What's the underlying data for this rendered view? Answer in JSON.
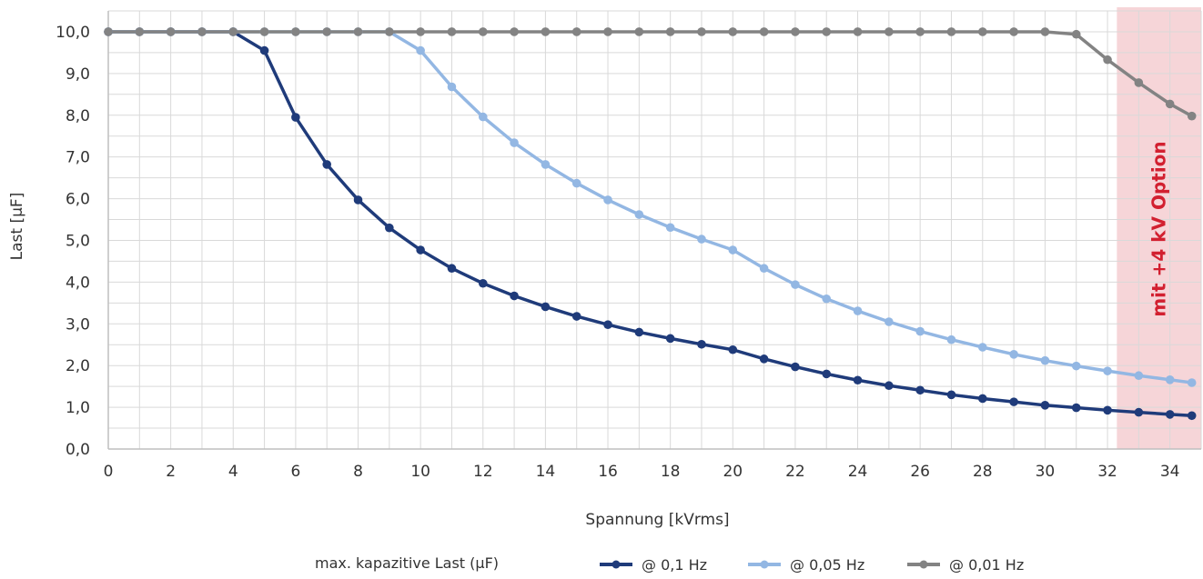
{
  "chart_data": {
    "type": "line",
    "xlabel": "Spannung [kVrms]",
    "ylabel": "Last [µF]",
    "xlim": [
      0,
      35
    ],
    "ylim": [
      0,
      10.5
    ],
    "xticks": [
      0,
      2,
      4,
      6,
      8,
      10,
      12,
      14,
      16,
      18,
      20,
      22,
      24,
      26,
      28,
      30,
      32,
      34
    ],
    "yticks": [
      "0,0",
      "1,0",
      "2,0",
      "3,0",
      "4,0",
      "5,0",
      "6,0",
      "7,0",
      "8,0",
      "9,0",
      "10,0"
    ],
    "grid": true,
    "legend_title": "max. kapazitive Last (µF)",
    "legend_position": "bottom",
    "highlight_band": {
      "x_from": 32.3,
      "x_to": 35,
      "label": "mit +4 kV Option",
      "color": "#f6d5d8"
    },
    "series": [
      {
        "name": "@ 0,1 Hz",
        "color": "#1f3b7a",
        "x": [
          0,
          1,
          2,
          3,
          4,
          5,
          6,
          7,
          8,
          9,
          10,
          11,
          12,
          13,
          14,
          15,
          16,
          17,
          18,
          19,
          20,
          21,
          22,
          23,
          24,
          25,
          26,
          27,
          28,
          29,
          30,
          31,
          32,
          33,
          34,
          34.7
        ],
        "y": [
          10,
          10,
          10,
          10,
          10,
          9.55,
          7.95,
          6.82,
          5.97,
          5.3,
          4.77,
          4.33,
          3.97,
          3.67,
          3.41,
          3.18,
          2.98,
          2.8,
          2.65,
          2.51,
          2.38,
          2.16,
          1.97,
          1.8,
          1.65,
          1.52,
          1.41,
          1.3,
          1.21,
          1.13,
          1.05,
          0.99,
          0.93,
          0.88,
          0.83,
          0.8
        ]
      },
      {
        "name": "@ 0,05 Hz",
        "color": "#93b7e3",
        "x": [
          0,
          1,
          2,
          3,
          4,
          5,
          6,
          7,
          8,
          9,
          10,
          11,
          12,
          13,
          14,
          15,
          16,
          17,
          18,
          19,
          20,
          21,
          22,
          23,
          24,
          25,
          26,
          27,
          28,
          29,
          30,
          31,
          32,
          33,
          34,
          34.7
        ],
        "y": [
          10,
          10,
          10,
          10,
          10,
          10,
          10,
          10,
          10,
          10,
          9.55,
          8.68,
          7.96,
          7.34,
          6.82,
          6.37,
          5.97,
          5.62,
          5.31,
          5.03,
          4.77,
          4.33,
          3.94,
          3.6,
          3.31,
          3.05,
          2.82,
          2.62,
          2.44,
          2.27,
          2.12,
          1.99,
          1.87,
          1.76,
          1.66,
          1.59
        ]
      },
      {
        "name": "@ 0,01 Hz",
        "color": "#838383",
        "x": [
          0,
          1,
          2,
          3,
          4,
          5,
          6,
          7,
          8,
          9,
          10,
          11,
          12,
          13,
          14,
          15,
          16,
          17,
          18,
          19,
          20,
          21,
          22,
          23,
          24,
          25,
          26,
          27,
          28,
          29,
          30,
          31,
          32,
          33,
          34,
          34.7
        ],
        "y": [
          10,
          10,
          10,
          10,
          10,
          10,
          10,
          10,
          10,
          10,
          10,
          10,
          10,
          10,
          10,
          10,
          10,
          10,
          10,
          10,
          10,
          10,
          10,
          10,
          10,
          10,
          10,
          10,
          10,
          10,
          10,
          9.94,
          9.33,
          8.78,
          8.27,
          7.98
        ]
      }
    ]
  }
}
